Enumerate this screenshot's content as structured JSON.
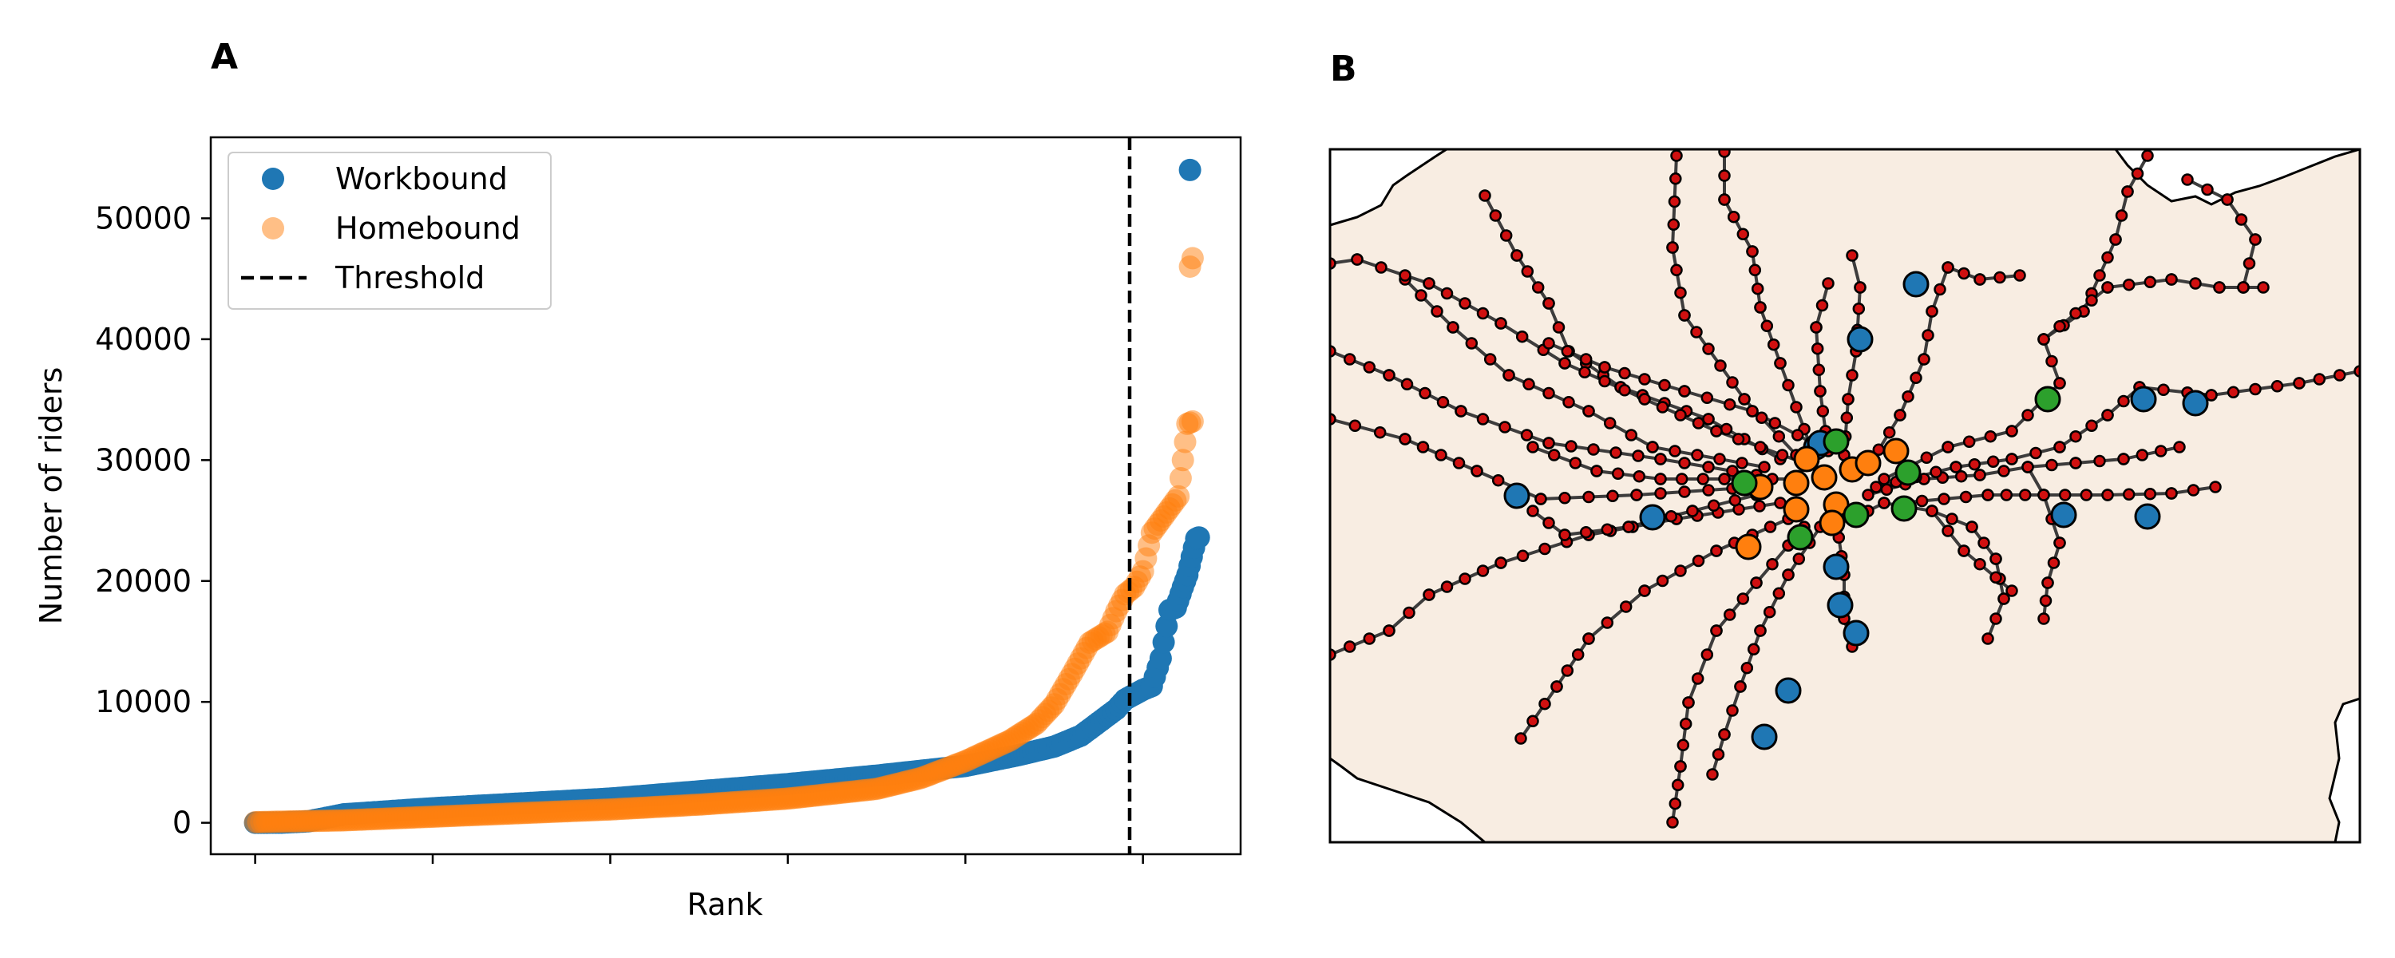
{
  "panels": {
    "a_label": "A",
    "b_label": "B"
  },
  "chart_data": [
    {
      "panel": "A",
      "type": "scatter",
      "title": "",
      "xlabel": "Rank",
      "ylabel": "Number of riders",
      "ylim": [
        -2600,
        56700
      ],
      "xlim": [
        -5,
        111
      ],
      "yticks": [
        0,
        10000,
        20000,
        30000,
        40000,
        50000
      ],
      "ytick_labels": [
        "0",
        "10000",
        "20000",
        "30000",
        "40000",
        "50000"
      ],
      "xticks": [
        0,
        20,
        40,
        60,
        80,
        100
      ],
      "xtick_labels": [
        "",
        "",
        "",
        "",
        "",
        ""
      ],
      "threshold_x": 98.5,
      "grid": false,
      "legend_position": "top-left",
      "legend": [
        "Workbound",
        "Homebound",
        "Threshold"
      ],
      "colors": {
        "workbound": "#1f77b4",
        "homebound": "#ff7f0e",
        "threshold": "#000000"
      },
      "series": [
        {
          "name": "Workbound",
          "marker": "circle",
          "alpha": 1.0,
          "keypoints": [
            [
              0,
              0
            ],
            [
              3,
              10
            ],
            [
              6,
              120
            ],
            [
              10,
              700
            ],
            [
              20,
              1200
            ],
            [
              30,
              1600
            ],
            [
              40,
              2000
            ],
            [
              50,
              2600
            ],
            [
              60,
              3200
            ],
            [
              70,
              3900
            ],
            [
              80,
              4700
            ],
            [
              86,
              5600
            ],
            [
              90,
              6300
            ],
            [
              93,
              7200
            ],
            [
              95,
              8300
            ],
            [
              97,
              9400
            ],
            [
              98,
              10200
            ],
            [
              100,
              11000
            ],
            [
              101,
              11300
            ],
            [
              102,
              13600
            ],
            [
              103,
              17600
            ],
            [
              103.7,
              17800
            ],
            [
              104.5,
              19500
            ],
            [
              105,
              20500
            ],
            [
              105.5,
              22000
            ],
            [
              106,
              23500
            ],
            [
              106.3,
              23600
            ]
          ],
          "outliers": [
            [
              105.3,
              54000
            ]
          ]
        },
        {
          "name": "Homebound",
          "marker": "circle",
          "alpha": 0.5,
          "keypoints": [
            [
              0,
              50
            ],
            [
              10,
              200
            ],
            [
              20,
              500
            ],
            [
              30,
              800
            ],
            [
              40,
              1100
            ],
            [
              50,
              1500
            ],
            [
              60,
              2000
            ],
            [
              70,
              2800
            ],
            [
              75,
              3700
            ],
            [
              80,
              5100
            ],
            [
              85,
              6800
            ],
            [
              88,
              8200
            ],
            [
              90,
              9800
            ],
            [
              92,
              12300
            ],
            [
              94,
              14900
            ],
            [
              96,
              15800
            ],
            [
              97,
              17500
            ],
            [
              98,
              18900
            ],
            [
              99,
              19500
            ],
            [
              100,
              20800
            ],
            [
              101,
              24000
            ],
            [
              102,
              25000
            ],
            [
              103,
              26000
            ],
            [
              104,
              27000
            ],
            [
              104.5,
              30000
            ],
            [
              105,
              33000
            ],
            [
              105.6,
              33200
            ]
          ],
          "outliers": [
            [
              105.3,
              46000
            ],
            [
              105.6,
              46700
            ]
          ]
        }
      ]
    },
    {
      "panel": "B",
      "type": "network-map",
      "title": "",
      "edge_color": "#333333",
      "land_color": "#f8ede2",
      "station_color": "#d01010",
      "highlight_groups": [
        {
          "color": "#1f77b4",
          "count": 15
        },
        {
          "color": "#ff7f0e",
          "count": 11
        },
        {
          "color": "#2ca02c",
          "count": 7
        }
      ]
    }
  ]
}
